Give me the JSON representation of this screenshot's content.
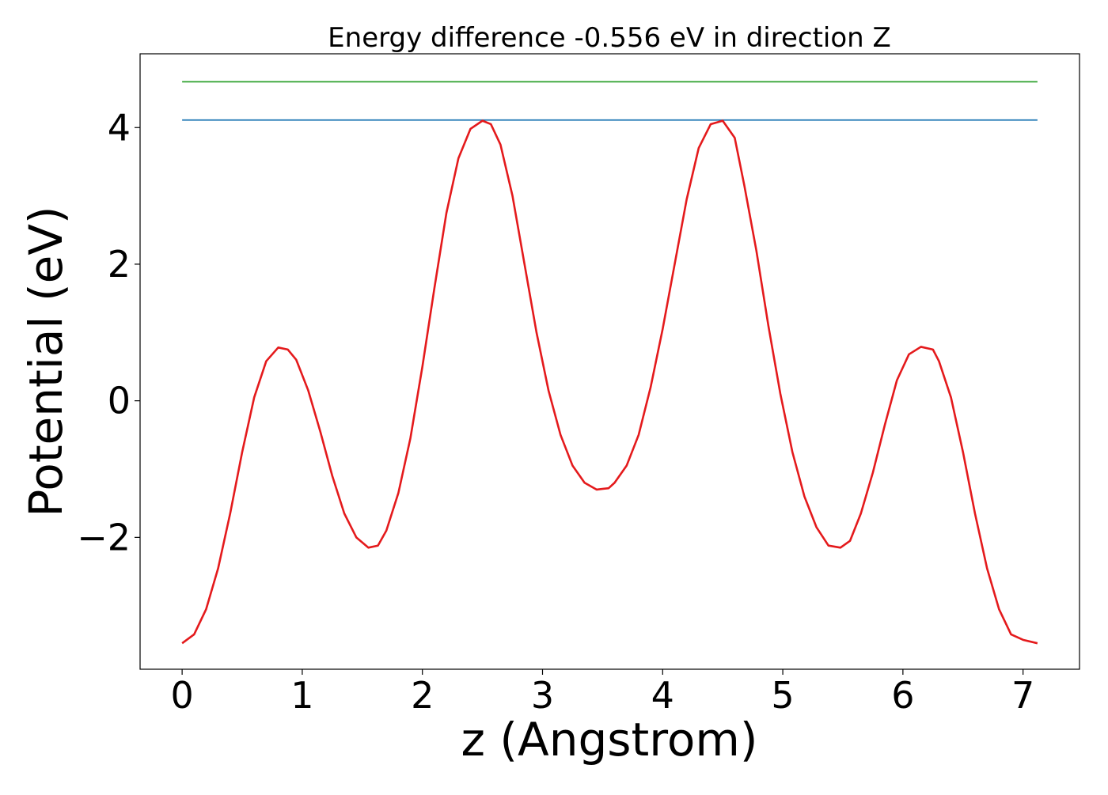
{
  "chart_data": {
    "type": "line",
    "title": "Energy difference -0.556 eV in direction Z",
    "xlabel": "z (Angstrom)",
    "ylabel": "Potential (eV)",
    "xlim": [
      -0.35,
      7.47
    ],
    "ylim": [
      -3.93,
      5.08
    ],
    "x_ticks": [
      0,
      1,
      2,
      3,
      4,
      5,
      6,
      7
    ],
    "x_tick_labels": [
      "0",
      "1",
      "2",
      "3",
      "4",
      "5",
      "6",
      "7"
    ],
    "y_ticks": [
      -2,
      0,
      2,
      4
    ],
    "y_tick_labels": [
      "−2",
      "0",
      "2",
      "4"
    ],
    "grid": false,
    "series": [
      {
        "color": "#2ca02c",
        "style": "horizontal",
        "x": [
          0,
          7.12
        ],
        "y": [
          4.67,
          4.67
        ]
      },
      {
        "color": "#1f77b4",
        "style": "horizontal",
        "x": [
          0,
          7.12
        ],
        "y": [
          4.11,
          4.11
        ]
      },
      {
        "color": "#e41a1c",
        "style": "curve",
        "x": [
          0,
          0.1,
          0.2,
          0.3,
          0.4,
          0.5,
          0.6,
          0.7,
          0.8,
          0.88,
          0.95,
          1.05,
          1.15,
          1.25,
          1.35,
          1.45,
          1.55,
          1.63,
          1.7,
          1.8,
          1.9,
          2.0,
          2.1,
          2.2,
          2.3,
          2.4,
          2.5,
          2.57,
          2.65,
          2.75,
          2.85,
          2.95,
          3.05,
          3.15,
          3.25,
          3.35,
          3.45,
          3.55,
          3.6,
          3.7,
          3.8,
          3.9,
          4.0,
          4.1,
          4.2,
          4.3,
          4.4,
          4.5,
          4.6,
          4.68,
          4.78,
          4.88,
          4.98,
          5.08,
          5.18,
          5.28,
          5.38,
          5.48,
          5.56,
          5.65,
          5.75,
          5.85,
          5.95,
          6.05,
          6.15,
          6.25,
          6.3,
          6.4,
          6.5,
          6.6,
          6.7,
          6.8,
          6.9,
          7.0,
          7.12
        ],
        "y": [
          -3.55,
          -3.42,
          -3.05,
          -2.45,
          -1.65,
          -0.75,
          0.05,
          0.58,
          0.78,
          0.75,
          0.6,
          0.15,
          -0.45,
          -1.1,
          -1.65,
          -2.0,
          -2.15,
          -2.12,
          -1.9,
          -1.35,
          -0.55,
          0.5,
          1.65,
          2.75,
          3.55,
          3.98,
          4.1,
          4.05,
          3.75,
          3.0,
          2.0,
          1.0,
          0.15,
          -0.5,
          -0.95,
          -1.2,
          -1.3,
          -1.28,
          -1.2,
          -0.95,
          -0.5,
          0.2,
          1.05,
          2.0,
          2.95,
          3.7,
          4.05,
          4.1,
          3.85,
          3.15,
          2.2,
          1.1,
          0.1,
          -0.75,
          -1.4,
          -1.85,
          -2.12,
          -2.15,
          -2.05,
          -1.65,
          -1.05,
          -0.35,
          0.3,
          0.68,
          0.79,
          0.75,
          0.58,
          0.05,
          -0.75,
          -1.65,
          -2.45,
          -3.05,
          -3.42,
          -3.5,
          -3.55
        ]
      }
    ]
  }
}
